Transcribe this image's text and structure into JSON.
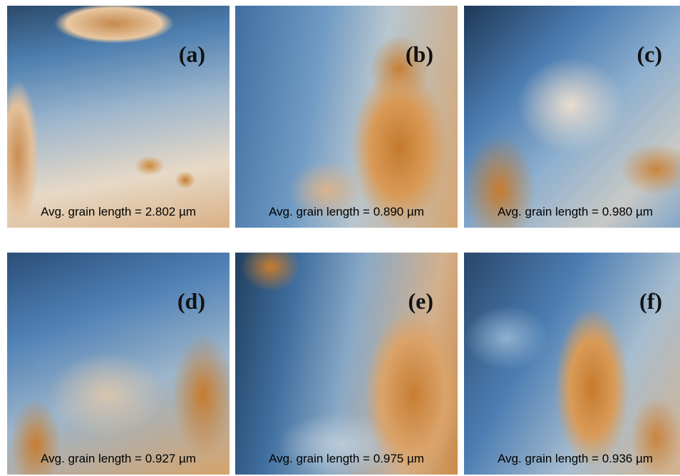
{
  "panels": [
    {
      "label": "(a)",
      "caption": "Avg. grain length = 2.802 µm"
    },
    {
      "label": "(b)",
      "caption": "Avg. grain length = 0.890 µm"
    },
    {
      "label": "(c)",
      "caption": "Avg. grain length = 0.980 µm"
    },
    {
      "label": "(d)",
      "caption": "Avg. grain length = 0.927 µm"
    },
    {
      "label": "(e)",
      "caption": "Avg. grain length = 0.975 µm"
    },
    {
      "label": "(f)",
      "caption": "Avg. grain length = 0.936 µm"
    }
  ]
}
